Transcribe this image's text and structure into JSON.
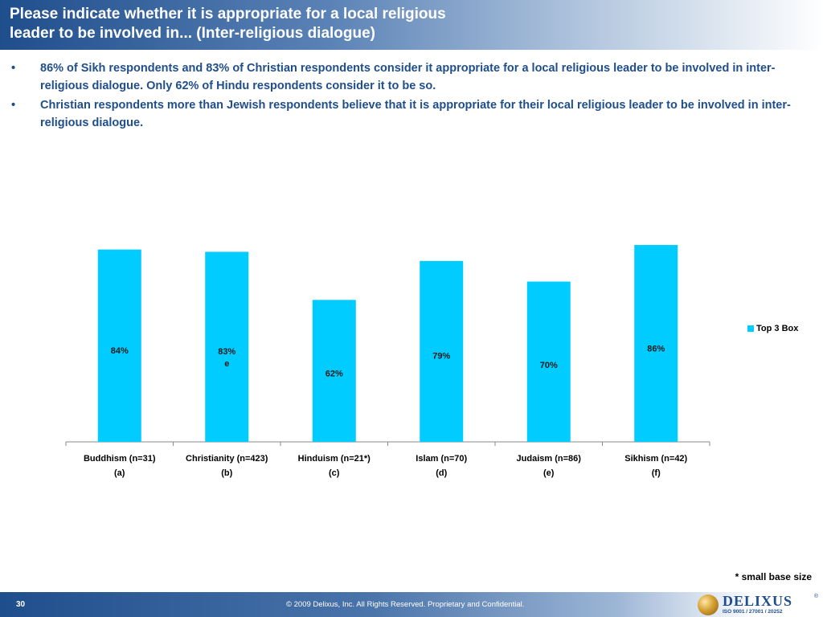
{
  "header": {
    "title_line1": "Please indicate whether it is appropriate for a local religious",
    "title_line2": "leader to be involved in... (Inter-religious dialogue)"
  },
  "bullets": [
    {
      "marker": "•",
      "text": "86% of Sikh respondents and 83% of Christian respondents consider it appropriate for a local religious leader to be involved in inter-religious dialogue. Only 62% of Hindu respondents consider it to be so."
    },
    {
      "marker": "•",
      "text": "Christian respondents more than Jewish respondents believe that it is appropriate for their local religious leader to be involved in inter-religious dialogue."
    }
  ],
  "chart_data": {
    "type": "bar",
    "categories": [
      "Buddhism (n=31)",
      "Christianity (n=423)",
      "Hinduism (n=21*)",
      "Islam (n=70)",
      "Judaism (n=86)",
      "Sikhism (n=42)"
    ],
    "category_codes": [
      "(a)",
      "(b)",
      "(c)",
      "(d)",
      "(e)",
      "(f)"
    ],
    "series": [
      {
        "name": "Top 3 Box",
        "values": [
          84,
          83,
          62,
          79,
          70,
          86
        ],
        "labels": [
          "84%",
          "83%",
          "62%",
          "79%",
          "70%",
          "86%"
        ],
        "sig_letters": [
          "",
          "e",
          "",
          "",
          "",
          ""
        ]
      }
    ],
    "ylim": [
      0,
      100
    ],
    "grid": false,
    "legend_position": "right",
    "bar_color": "#00ccff"
  },
  "footnote": "* small base size",
  "footer": {
    "page_number": "30",
    "copyright": "© 2009 Delixus, Inc. All Rights Reserved. Proprietary and Confidential.",
    "logo_word": "DELIXUS",
    "logo_sub": "ISO 9001 / 27001 / 20252",
    "logo_reg": "®"
  }
}
